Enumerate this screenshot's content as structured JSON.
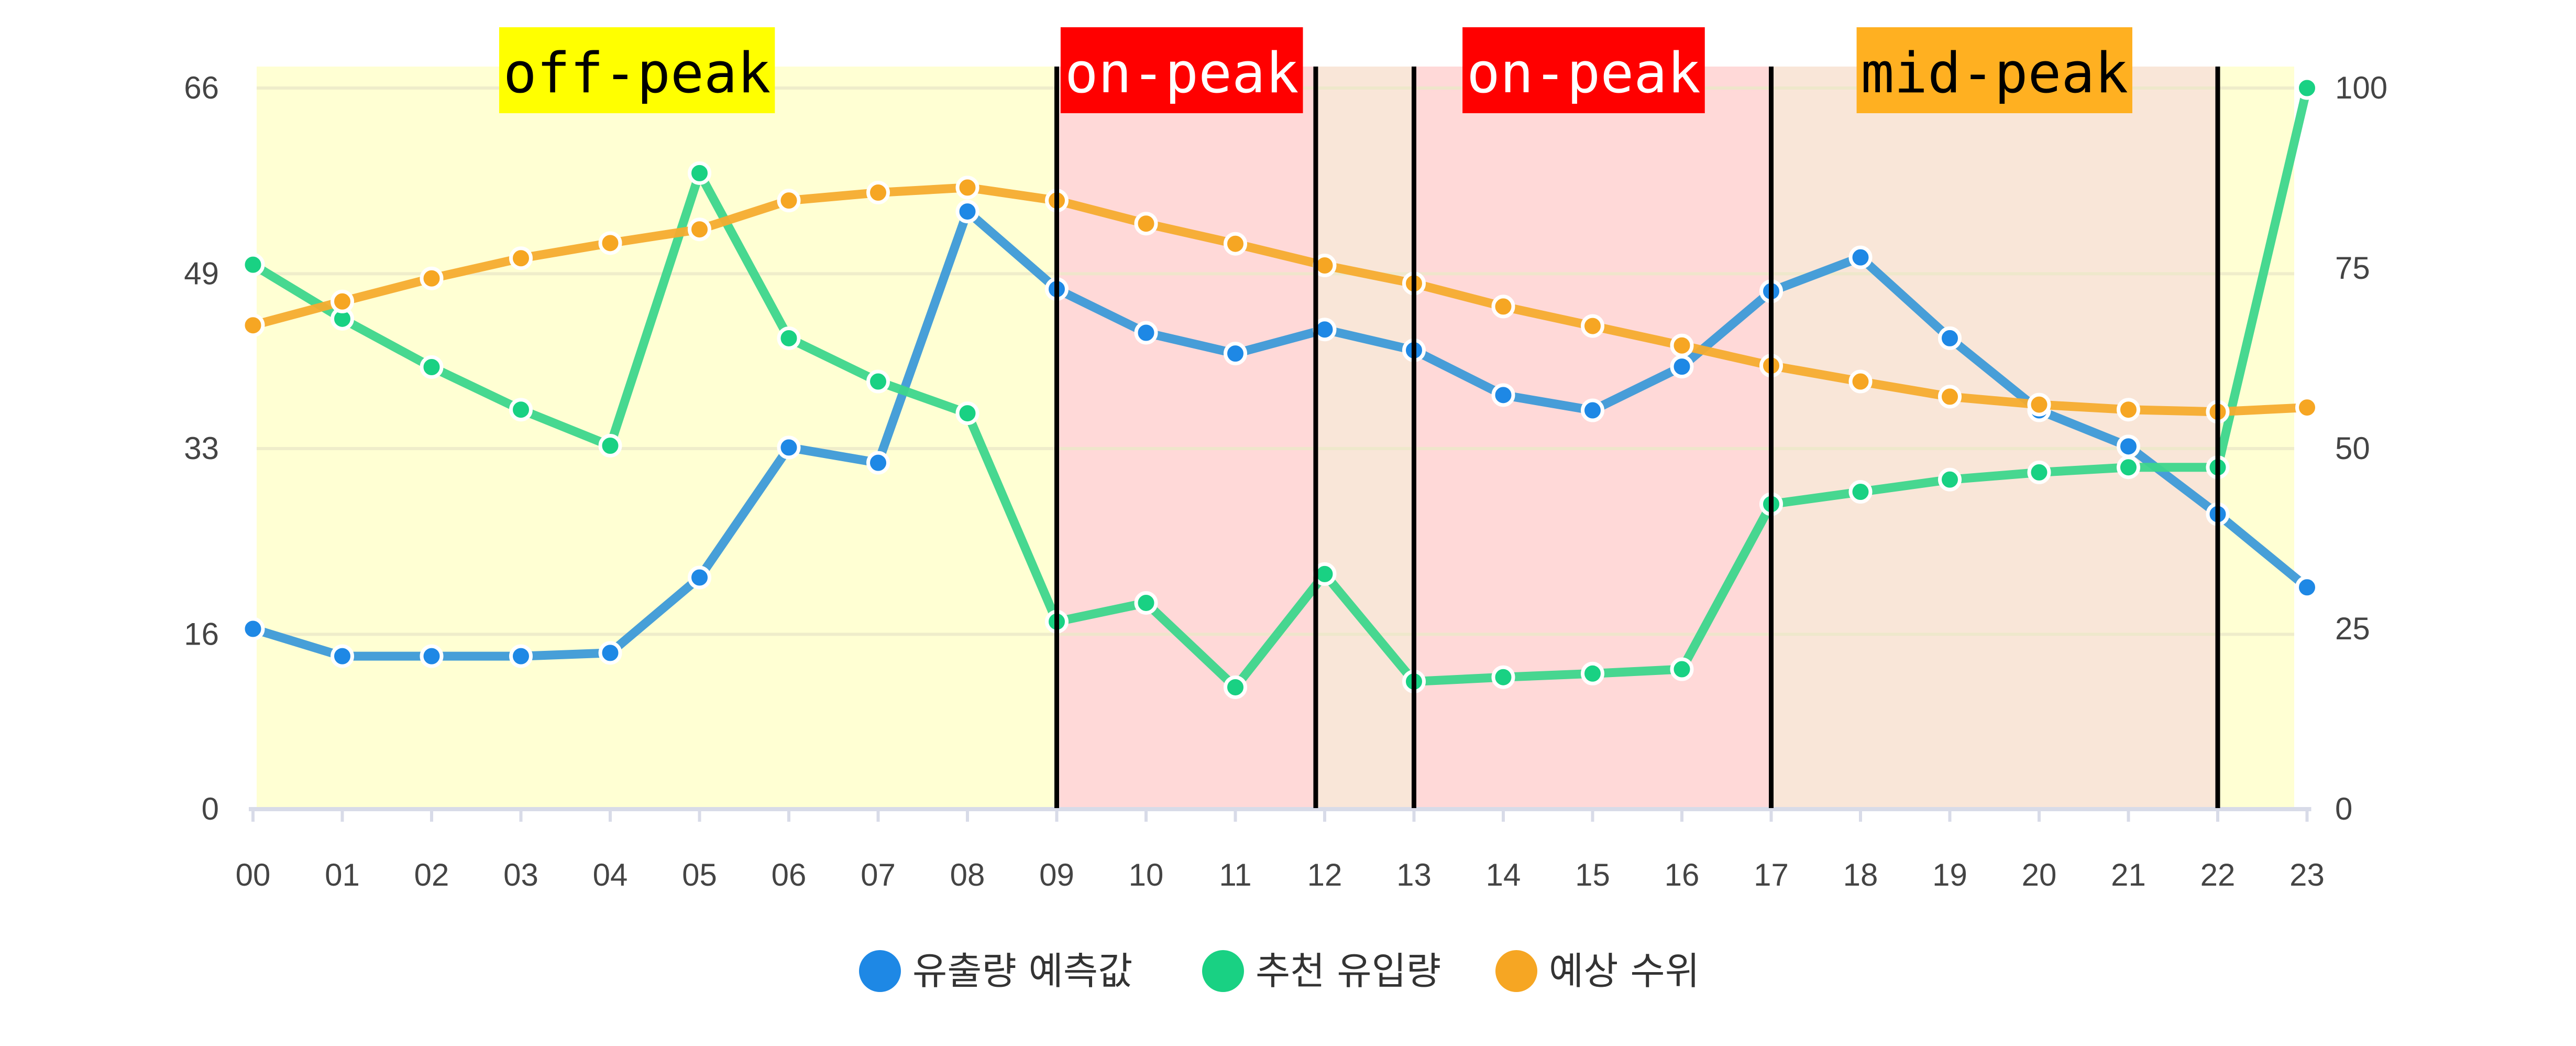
{
  "chart_data": {
    "type": "line",
    "title": "",
    "xlabel": "",
    "categories": [
      "00",
      "01",
      "02",
      "03",
      "04",
      "05",
      "06",
      "07",
      "08",
      "09",
      "10",
      "11",
      "12",
      "13",
      "14",
      "15",
      "16",
      "17",
      "18",
      "19",
      "20",
      "21",
      "22",
      "23"
    ],
    "y_left": {
      "ticks": [
        "0",
        "16",
        "33",
        "49",
        "66"
      ],
      "range": [
        0,
        66
      ]
    },
    "y_right": {
      "ticks": [
        "0",
        "25",
        "50",
        "75",
        "100"
      ],
      "range": [
        0,
        100
      ]
    },
    "series": [
      {
        "name": "유출량 예측값",
        "color": "#3d9ad8",
        "marker_color": "#1e88e5",
        "axis": "left",
        "values": [
          16.5,
          14,
          14,
          14,
          14.3,
          21.2,
          33.1,
          31.7,
          54.7,
          47.6,
          43.6,
          41.7,
          43.9,
          42,
          37.9,
          36.5,
          40.5,
          47.4,
          50.5,
          43.1,
          36.5,
          33.2,
          27,
          20.3
        ]
      },
      {
        "name": "추천 유입량",
        "color": "#3dd68c",
        "marker_color": "#19d183",
        "axis": "right",
        "values": [
          75.5,
          68,
          61.3,
          55.4,
          50.4,
          88.2,
          65.3,
          59.3,
          54.9,
          26,
          28.6,
          16.9,
          32.6,
          17.7,
          18.3,
          18.8,
          19.4,
          42.3,
          44,
          45.7,
          46.7,
          47.4,
          47.4,
          100
        ]
      },
      {
        "name": "예상 수위",
        "color": "#f6ac2f",
        "marker_color": "#f6a623",
        "axis": "right",
        "values": [
          67.1,
          70.4,
          73.6,
          76.4,
          78.5,
          80.4,
          84.4,
          85.5,
          86.2,
          84.4,
          81.2,
          78.4,
          75.4,
          72.9,
          69.7,
          67,
          64.3,
          61.5,
          59.3,
          57.2,
          56.1,
          55.4,
          55.1,
          55.7
        ]
      }
    ],
    "bands": [
      {
        "label": "off-peak",
        "from": 0,
        "to": 9,
        "fill": "#ffffd3",
        "label_bg": "#ffff00",
        "label_color": "#000000",
        "label_center": 4.3
      },
      {
        "label": "on-peak",
        "from": 9,
        "to": 11.9,
        "fill": "#ffd9d8",
        "label_bg": "#ff0000",
        "label_color": "#ffffff",
        "label_center": 10.4
      },
      {
        "label": "",
        "from": 11.9,
        "to": 13,
        "fill": "#f9e6d8"
      },
      {
        "label": "on-peak",
        "from": 13,
        "to": 17,
        "fill": "#ffd9d8",
        "label_bg": "#ff0000",
        "label_color": "#ffffff",
        "label_center": 14.9
      },
      {
        "label": "mid-peak",
        "from": 17,
        "to": 22,
        "fill": "#f9e6d8",
        "label_bg": "#ffb021",
        "label_color": "#000000",
        "label_center": 19.5
      },
      {
        "label": "",
        "from": 22,
        "to": 23,
        "fill": "#ffffd3"
      }
    ],
    "dividers": [
      9,
      11.9,
      13,
      17,
      22
    ],
    "legend": {
      "position": "bottom-center"
    }
  }
}
